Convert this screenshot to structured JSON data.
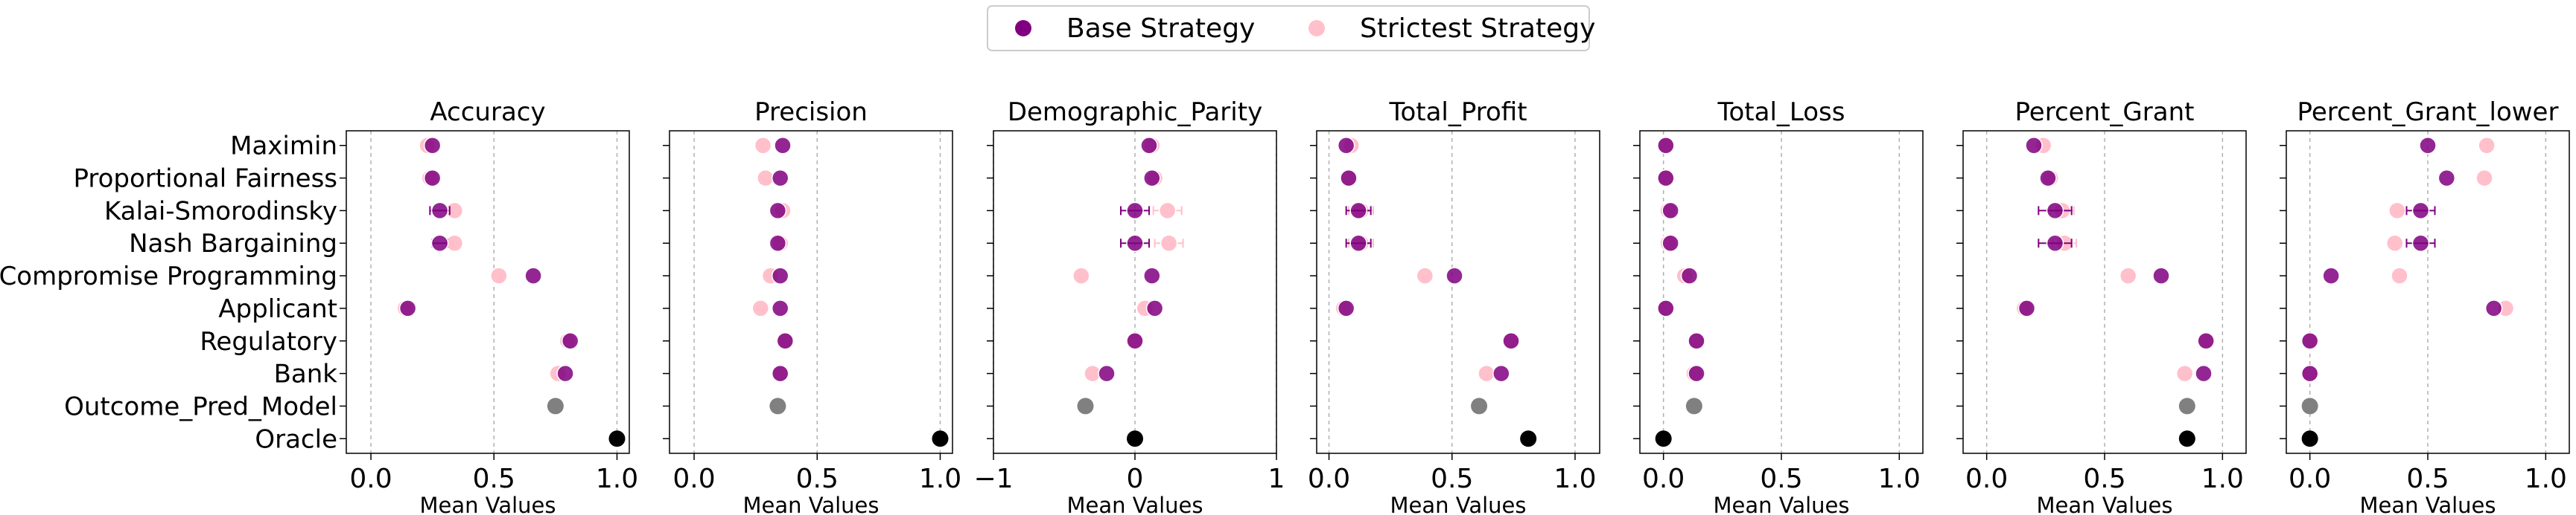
{
  "legend": {
    "placement": "top-center",
    "items": [
      {
        "label": "Base Strategy",
        "color": "#800080"
      },
      {
        "label": "Strictest Strategy",
        "color": "#FFC0CB"
      }
    ]
  },
  "colors": {
    "base": "#800080",
    "strictest": "#FFC0CB",
    "outcome_pred_model": "#808080",
    "oracle": "#000000",
    "grid": "#b0b0b0"
  },
  "chart_data": {
    "type": "scatter",
    "categories": [
      "Maximin",
      "Proportional Fairness",
      "Kalai-Smorodinsky",
      "Nash Bargaining",
      "Compromise Programming",
      "Applicant",
      "Regulatory",
      "Bank",
      "Outcome_Pred_Model",
      "Oracle"
    ],
    "xlabel": "Mean Values",
    "grid": "x-dashed",
    "panels": [
      {
        "title": "Accuracy",
        "xlim": [
          -0.1,
          1.05
        ],
        "ticks": [
          0.0,
          0.5,
          1.0
        ],
        "tick_labels": [
          "0.0",
          "0.5",
          "1.0"
        ],
        "base": [
          0.25,
          0.25,
          0.28,
          0.28,
          0.66,
          0.15,
          0.81,
          0.79,
          null,
          null
        ],
        "base_err": [
          0,
          0,
          0.04,
          0.03,
          0,
          0,
          0,
          0,
          null,
          null
        ],
        "strictest": [
          0.23,
          0.24,
          0.34,
          0.34,
          0.52,
          0.14,
          0.8,
          0.76,
          null,
          null
        ],
        "strictest_err": [
          0,
          0,
          0,
          0,
          0,
          0,
          0,
          0,
          null,
          null
        ],
        "outcome_pred_model": 0.75,
        "oracle": 1.0
      },
      {
        "title": "Precision",
        "xlim": [
          -0.1,
          1.05
        ],
        "ticks": [
          0.0,
          0.5,
          1.0
        ],
        "tick_labels": [
          "0.0",
          "0.5",
          "1.0"
        ],
        "base": [
          0.36,
          0.35,
          0.34,
          0.34,
          0.35,
          0.35,
          0.37,
          0.35,
          null,
          null
        ],
        "base_err": [
          0,
          0,
          0,
          0,
          0,
          0,
          0,
          0,
          null,
          null
        ],
        "strictest": [
          0.28,
          0.29,
          0.36,
          0.35,
          0.31,
          0.27,
          0.37,
          0.35,
          null,
          null
        ],
        "strictest_err": [
          0,
          0,
          0,
          0,
          0,
          0,
          0,
          0,
          null,
          null
        ],
        "outcome_pred_model": 0.34,
        "oracle": 1.0
      },
      {
        "title": "Demographic_Parity",
        "xlim": [
          -1.0,
          1.0
        ],
        "ticks": [
          -1,
          0,
          1
        ],
        "tick_labels": [
          "−1",
          "0",
          "1"
        ],
        "base": [
          0.1,
          0.12,
          0.0,
          0.0,
          0.12,
          0.14,
          0.0,
          -0.2,
          null,
          null
        ],
        "base_err": [
          0,
          0,
          0.1,
          0.1,
          0,
          0,
          0,
          0,
          null,
          null
        ],
        "strictest": [
          0.12,
          0.14,
          0.23,
          0.24,
          -0.38,
          0.07,
          0.0,
          -0.3,
          null,
          null
        ],
        "strictest_err": [
          0,
          0,
          0.1,
          0.1,
          0,
          0,
          0,
          0,
          null,
          null
        ],
        "outcome_pred_model": -0.35,
        "oracle": 0.0
      },
      {
        "title": "Total_Profit",
        "xlim": [
          -0.05,
          1.1
        ],
        "ticks": [
          0.0,
          0.5,
          1.0
        ],
        "tick_labels": [
          "0.0",
          "0.5",
          "1.0"
        ],
        "base": [
          0.07,
          0.08,
          0.12,
          0.12,
          0.51,
          0.07,
          0.74,
          0.7,
          null,
          null
        ],
        "base_err": [
          0,
          0,
          0.05,
          0.05,
          0,
          0,
          0,
          0,
          null,
          null
        ],
        "strictest": [
          0.09,
          0.08,
          0.13,
          0.13,
          0.39,
          0.06,
          0.74,
          0.64,
          null,
          null
        ],
        "strictest_err": [
          0,
          0,
          0.05,
          0.05,
          0,
          0,
          0,
          0,
          null,
          null
        ],
        "outcome_pred_model": 0.61,
        "oracle": 0.81
      },
      {
        "title": "Total_Loss",
        "xlim": [
          -0.1,
          1.1
        ],
        "ticks": [
          0.0,
          0.5,
          1.0
        ],
        "tick_labels": [
          "0.0",
          "0.5",
          "1.0"
        ],
        "base": [
          0.01,
          0.01,
          0.03,
          0.03,
          0.11,
          0.01,
          0.14,
          0.14,
          null,
          null
        ],
        "base_err": [
          0,
          0,
          0,
          0,
          0,
          0,
          0,
          0,
          null,
          null
        ],
        "strictest": [
          0.01,
          0.01,
          0.02,
          0.02,
          0.09,
          0.01,
          0.14,
          0.13,
          null,
          null
        ],
        "strictest_err": [
          0,
          0,
          0,
          0,
          0,
          0,
          0,
          0,
          null,
          null
        ],
        "outcome_pred_model": 0.13,
        "oracle": 0.0
      },
      {
        "title": "Percent_Grant",
        "xlim": [
          -0.1,
          1.1
        ],
        "ticks": [
          0.0,
          0.5,
          1.0
        ],
        "tick_labels": [
          "0.0",
          "0.5",
          "1.0"
        ],
        "base": [
          0.2,
          0.26,
          0.29,
          0.29,
          0.74,
          0.17,
          0.93,
          0.92,
          null,
          null
        ],
        "base_err": [
          0,
          0,
          0.07,
          0.07,
          0,
          0,
          0,
          0,
          null,
          null
        ],
        "strictest": [
          0.24,
          0.27,
          0.32,
          0.33,
          0.6,
          0.16,
          0.93,
          0.84,
          null,
          null
        ],
        "strictest_err": [
          0,
          0,
          0.05,
          0.05,
          0,
          0,
          0,
          0,
          null,
          null
        ],
        "outcome_pred_model": 0.85,
        "oracle": 0.85
      },
      {
        "title": "Percent_Grant_lower",
        "xlim": [
          -0.1,
          1.1
        ],
        "ticks": [
          0.0,
          0.5,
          1.0
        ],
        "tick_labels": [
          "0.0",
          "0.5",
          "1.0"
        ],
        "base": [
          0.5,
          0.58,
          0.47,
          0.47,
          0.09,
          0.78,
          0.0,
          0.0,
          null,
          null
        ],
        "base_err": [
          0,
          0,
          0.06,
          0.06,
          0,
          0,
          0,
          0,
          null,
          null
        ],
        "strictest": [
          0.75,
          0.74,
          0.37,
          0.36,
          0.38,
          0.83,
          0.0,
          0.0,
          null,
          null
        ],
        "strictest_err": [
          0,
          0,
          0,
          0,
          0,
          0,
          0,
          0,
          null,
          null
        ],
        "outcome_pred_model": 0.0,
        "oracle": 0.0
      }
    ]
  }
}
